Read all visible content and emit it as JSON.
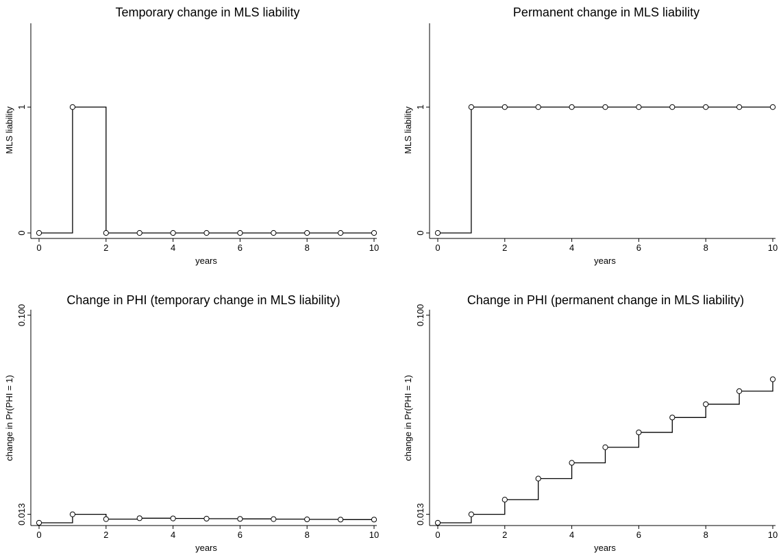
{
  "chart_data": [
    {
      "type": "line",
      "title": "Temporary change in MLS liability",
      "xlabel": "years",
      "ylabel": "MLS liability",
      "x_ticks": [
        "0",
        "2",
        "4",
        "6",
        "8",
        "10"
      ],
      "y_ticks": [
        "0",
        "1"
      ],
      "xlim": [
        0,
        10
      ],
      "ylim": [
        0,
        1.6
      ],
      "step": true,
      "markers": "hollow-circle",
      "x": [
        0,
        1,
        2,
        3,
        4,
        5,
        6,
        7,
        8,
        9,
        10
      ],
      "y": [
        0,
        1,
        0,
        0,
        0,
        0,
        0,
        0,
        0,
        0,
        0
      ]
    },
    {
      "type": "line",
      "title": "Permanent change in MLS liability",
      "xlabel": "years",
      "ylabel": "MLS liability",
      "x_ticks": [
        "0",
        "2",
        "4",
        "6",
        "8",
        "10"
      ],
      "y_ticks": [
        "0",
        "1"
      ],
      "xlim": [
        0,
        10
      ],
      "ylim": [
        0,
        1.6
      ],
      "step": true,
      "markers": "hollow-circle",
      "x": [
        0,
        1,
        2,
        3,
        4,
        5,
        6,
        7,
        8,
        9,
        10
      ],
      "y": [
        0,
        1,
        1,
        1,
        1,
        1,
        1,
        1,
        1,
        1,
        1
      ]
    },
    {
      "type": "line",
      "title": "Change in PHI (temporary change in MLS liability)",
      "xlabel": "years",
      "ylabel": "change in Pr(PHI = 1)",
      "x_ticks": [
        "0",
        "2",
        "4",
        "6",
        "8",
        "10"
      ],
      "y_ticks": [
        "0.013",
        "0.100"
      ],
      "xlim": [
        0,
        10
      ],
      "ylim": [
        0.0084,
        0.1
      ],
      "step": true,
      "markers": "hollow-circle",
      "x": [
        0,
        1,
        2,
        3,
        4,
        5,
        6,
        7,
        8,
        9,
        10
      ],
      "y": [
        0.0093,
        0.013,
        0.0109,
        0.0113,
        0.0112,
        0.0111,
        0.011,
        0.0109,
        0.0108,
        0.0107,
        0.0107
      ]
    },
    {
      "type": "line",
      "title": "Change in PHI (permanent change in MLS liability)",
      "xlabel": "years",
      "ylabel": "change in Pr(PHI = 1)",
      "x_ticks": [
        "0",
        "2",
        "4",
        "6",
        "8",
        "10"
      ],
      "y_ticks": [
        "0.013",
        "0.100"
      ],
      "xlim": [
        0,
        10
      ],
      "ylim": [
        0.0084,
        0.1
      ],
      "step": true,
      "markers": "hollow-circle",
      "x": [
        0,
        1,
        2,
        3,
        4,
        5,
        6,
        7,
        8,
        9,
        10
      ],
      "y": [
        0.0093,
        0.013,
        0.0194,
        0.0286,
        0.0355,
        0.0423,
        0.0488,
        0.0553,
        0.0611,
        0.0668,
        0.072
      ]
    }
  ]
}
